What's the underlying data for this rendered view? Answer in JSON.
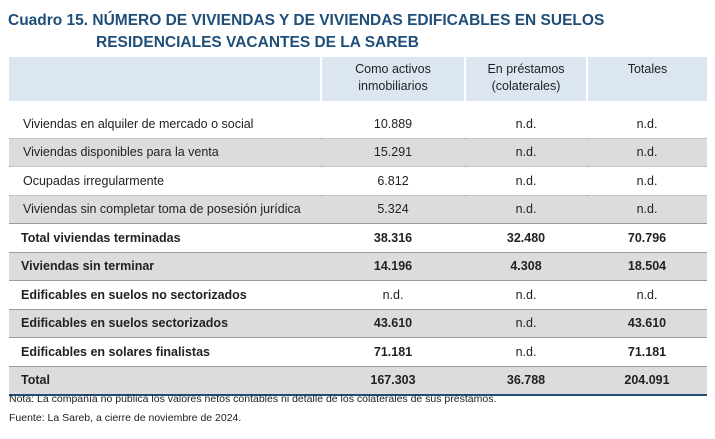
{
  "title": {
    "line1": "Cuadro 15. NÚMERO DE VIVIENDAS Y DE VIVIENDAS EDIFICABLES EN SUELOS",
    "line2": "RESIDENCIALES VACANTES DE LA SAREB"
  },
  "table": {
    "headers": [
      "",
      "Como activos inmobiliarios",
      "En préstamos (colaterales)",
      "Totales"
    ],
    "header_lines": {
      "c2": [
        "Como activos",
        "inmobiliarios"
      ],
      "c3": [
        "En préstamos",
        "(colaterales)"
      ],
      "c4": [
        "Totales"
      ]
    },
    "rows": [
      {
        "label": "Viviendas en alquiler de mercado o social",
        "c1": "10.889",
        "c2": "n.d.",
        "c3": "n.d."
      },
      {
        "label": "Viviendas disponibles para la venta",
        "c1": "15.291",
        "c2": "n.d.",
        "c3": "n.d."
      },
      {
        "label": "Ocupadas irregularmente",
        "c1": "6.812",
        "c2": "n.d.",
        "c3": "n.d."
      },
      {
        "label": "Viviendas sin completar toma de posesión jurídica",
        "c1": "5.324",
        "c2": "n.d.",
        "c3": "n.d."
      },
      {
        "label": "Total viviendas terminadas",
        "c1": "38.316",
        "c2": "32.480",
        "c3": "70.796"
      },
      {
        "label": "Viviendas sin terminar",
        "c1": "14.196",
        "c2": "4.308",
        "c3": "18.504"
      },
      {
        "label": "Edificables en suelos no sectorizados",
        "c1": "n.d.",
        "c2": "n.d.",
        "c3": "n.d."
      },
      {
        "label": "Edificables en suelos sectorizados",
        "c1": "43.610",
        "c2": "n.d.",
        "c3": "43.610"
      },
      {
        "label": "Edificables en solares finalistas",
        "c1": "71.181",
        "c2": "n.d.",
        "c3": "71.181"
      },
      {
        "label": "Total",
        "c1": "167.303",
        "c2": "36.788",
        "c3": "204.091"
      }
    ]
  },
  "notes": {
    "note": "Nota: La compañía no publica los valores netos contables ni detalle de los colaterales de sus préstamos.",
    "source": "Fuente: La Sareb, a cierre de noviembre de 2024."
  },
  "colors": {
    "title": "#1f4e79",
    "header_bg": "#dce6f1",
    "grey_row": "#dcdcdc",
    "bottom_rule": "#1f4e79"
  }
}
